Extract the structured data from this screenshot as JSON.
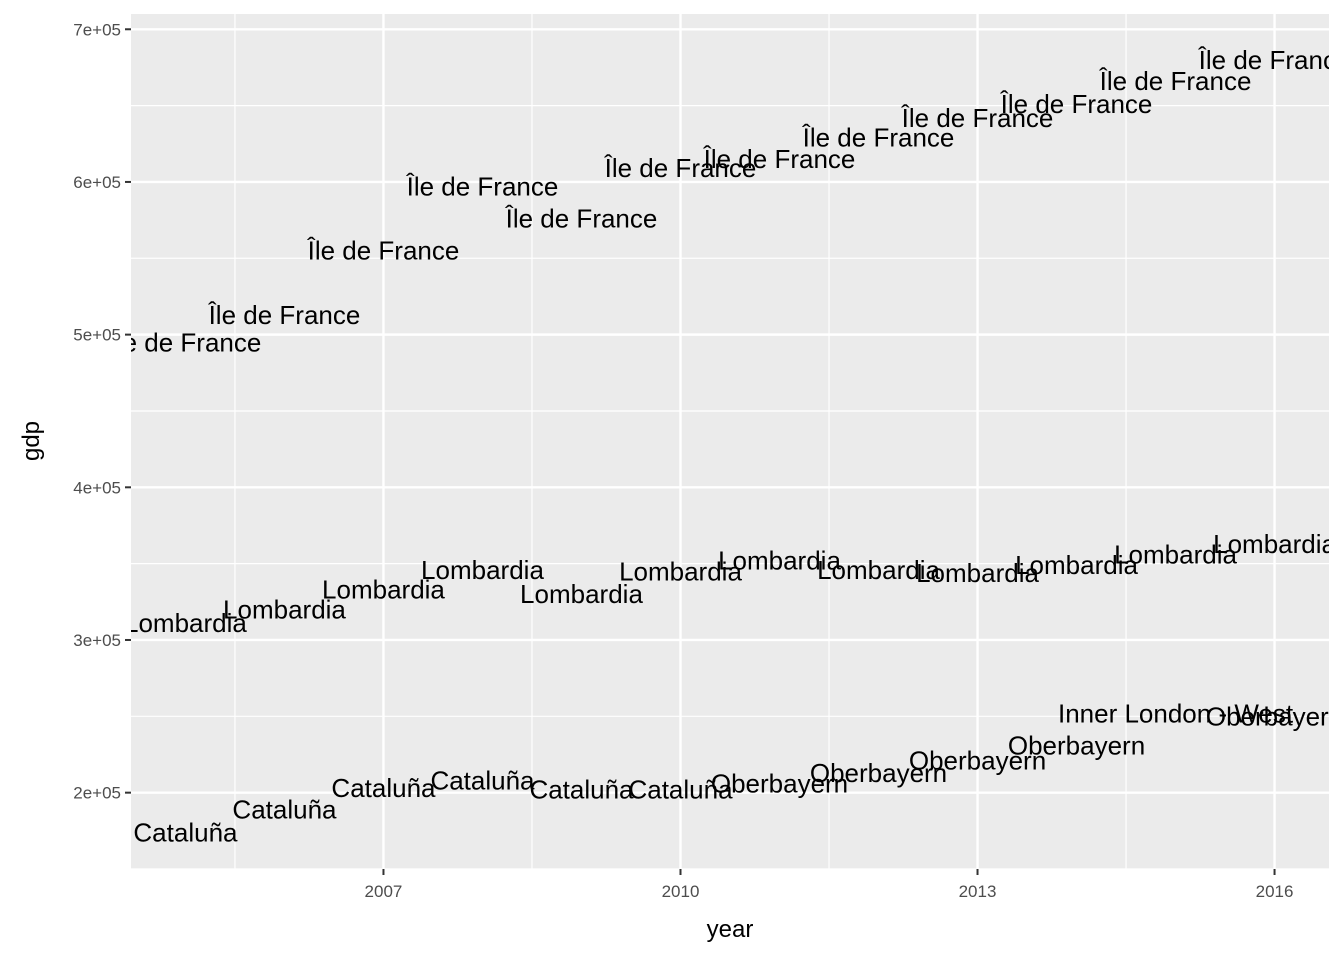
{
  "chart_data": {
    "type": "scatter",
    "title": "",
    "xlabel": "year",
    "ylabel": "gdp",
    "xlim": [
      2004.45,
      2016.55
    ],
    "ylim": [
      150000,
      710000
    ],
    "x_ticks": [
      2007,
      2010,
      2013,
      2016
    ],
    "x_tick_labels": [
      "2007",
      "2010",
      "2013",
      "2016"
    ],
    "y_ticks": [
      200000,
      300000,
      400000,
      500000,
      600000,
      700000
    ],
    "y_tick_labels": [
      "2e+05",
      "3e+05",
      "4e+05",
      "5e+05",
      "6e+05",
      "7e+05"
    ],
    "grid": true,
    "legend": "none",
    "series": [
      {
        "label": "Île de France",
        "points": [
          {
            "x": 2005,
            "y": 495000
          },
          {
            "x": 2006,
            "y": 513000
          },
          {
            "x": 2007,
            "y": 555000
          },
          {
            "x": 2008,
            "y": 597000
          },
          {
            "x": 2009,
            "y": 576000
          },
          {
            "x": 2010,
            "y": 609000
          },
          {
            "x": 2011,
            "y": 615000
          },
          {
            "x": 2012,
            "y": 629000
          },
          {
            "x": 2013,
            "y": 642000
          },
          {
            "x": 2014,
            "y": 651000
          },
          {
            "x": 2015,
            "y": 666000
          },
          {
            "x": 2016,
            "y": 680000
          }
        ]
      },
      {
        "label": "Lombardia",
        "points": [
          {
            "x": 2005,
            "y": 311000
          },
          {
            "x": 2006,
            "y": 320000
          },
          {
            "x": 2007,
            "y": 333000
          },
          {
            "x": 2008,
            "y": 346000
          },
          {
            "x": 2009,
            "y": 330000
          },
          {
            "x": 2010,
            "y": 345000
          },
          {
            "x": 2011,
            "y": 352000
          },
          {
            "x": 2012,
            "y": 346000
          },
          {
            "x": 2013,
            "y": 344000
          },
          {
            "x": 2014,
            "y": 349000
          },
          {
            "x": 2015,
            "y": 356000
          },
          {
            "x": 2016,
            "y": 363000
          }
        ]
      },
      {
        "label": "Cataluña",
        "points": [
          {
            "x": 2005,
            "y": 174000
          },
          {
            "x": 2006,
            "y": 189000
          },
          {
            "x": 2007,
            "y": 203000
          },
          {
            "x": 2008,
            "y": 208000
          },
          {
            "x": 2009,
            "y": 202000
          },
          {
            "x": 2010,
            "y": 202000
          }
        ]
      },
      {
        "label": "Oberbayern",
        "points": [
          {
            "x": 2011,
            "y": 206000
          },
          {
            "x": 2012,
            "y": 213000
          },
          {
            "x": 2013,
            "y": 221000
          },
          {
            "x": 2014,
            "y": 231000
          },
          {
            "x": 2016,
            "y": 250000
          }
        ]
      },
      {
        "label": "Inner London - West",
        "points": [
          {
            "x": 2015,
            "y": 252000
          }
        ]
      }
    ]
  }
}
